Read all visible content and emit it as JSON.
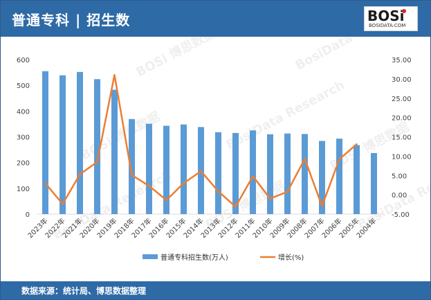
{
  "header": {
    "title": "普通专科 | 招生数"
  },
  "logo": {
    "word": "BOSi",
    "sub": "BOSIDATA.COM"
  },
  "footer": {
    "source": "数据来源：统计局、博思数据整理"
  },
  "watermarks": [
    "BOSi 博思数据",
    "BosiData Research"
  ],
  "colors": {
    "bar": "#5b9bd5",
    "line": "#ed7d31",
    "header": "#2e6aa6"
  },
  "chart_data": {
    "type": "bar",
    "categories": [
      "2023年",
      "2022年",
      "2021年",
      "2020年",
      "2019年",
      "2018年",
      "2017年",
      "2016年",
      "2015年",
      "2014年",
      "2013年",
      "2012年",
      "2011年",
      "2010年",
      "2009年",
      "2008年",
      "2007年",
      "2006年",
      "2005年",
      "2004年"
    ],
    "series": [
      {
        "name": "普通专科招生数(万人)",
        "type": "bar",
        "axis": "left",
        "values": [
          555,
          539,
          552,
          524,
          483,
          369,
          351,
          343,
          348,
          338,
          318,
          315,
          325,
          310,
          313,
          311,
          284,
          293,
          268,
          237
        ]
      },
      {
        "name": "增长(%)",
        "type": "line",
        "axis": "right",
        "values": [
          3.0,
          -2.4,
          5.3,
          8.5,
          31.0,
          5.1,
          2.3,
          -1.4,
          3.0,
          6.1,
          0.9,
          -3.1,
          4.8,
          -1.0,
          0.8,
          9.3,
          -2.9,
          9.2,
          13.1,
          null
        ]
      }
    ],
    "yleft": {
      "ticks": [
        0,
        100,
        200,
        300,
        400,
        500,
        600
      ],
      "ylim": [
        0,
        600
      ]
    },
    "yright": {
      "ticks": [
        "-5.00",
        "0.00",
        "5.00",
        "10.00",
        "15.00",
        "20.00",
        "25.00",
        "30.00",
        "35.00"
      ],
      "ylim": [
        -5,
        35
      ]
    },
    "grid": false,
    "legend": "bottom"
  }
}
